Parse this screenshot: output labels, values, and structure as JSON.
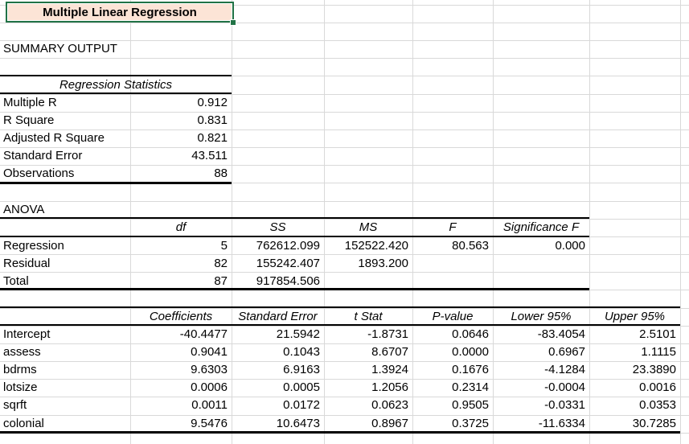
{
  "title_cell": {
    "text": "Multiple Linear Regression"
  },
  "summary_heading": "SUMMARY OUTPUT",
  "regression_statistics": {
    "header": "Regression Statistics",
    "rows": [
      {
        "label": "Multiple R",
        "value": "0.912"
      },
      {
        "label": "R Square",
        "value": "0.831"
      },
      {
        "label": "Adjusted R Square",
        "value": "0.821"
      },
      {
        "label": "Standard Error",
        "value": "43.511"
      },
      {
        "label": "Observations",
        "value": "88"
      }
    ]
  },
  "anova": {
    "heading": "ANOVA",
    "columns": [
      "df",
      "SS",
      "MS",
      "F",
      "Significance F"
    ],
    "rows": [
      {
        "label": "Regression",
        "df": "5",
        "ss": "762612.099",
        "ms": "152522.420",
        "f": "80.563",
        "sig_f": "0.000"
      },
      {
        "label": "Residual",
        "df": "82",
        "ss": "155242.407",
        "ms": "1893.200"
      },
      {
        "label": "Total",
        "df": "87",
        "ss": "917854.506"
      }
    ]
  },
  "coefficients": {
    "columns": [
      "Coefficients",
      "Standard Error",
      "t Stat",
      "P-value",
      "Lower 95%",
      "Upper 95%"
    ],
    "rows": [
      {
        "label": "Intercept",
        "coef": "-40.4477",
        "se": "21.5942",
        "t": "-1.8731",
        "p": "0.0646",
        "lo": "-83.4054",
        "hi": "2.5101"
      },
      {
        "label": "assess",
        "coef": "0.9041",
        "se": "0.1043",
        "t": "8.6707",
        "p": "0.0000",
        "lo": "0.6967",
        "hi": "1.1115"
      },
      {
        "label": "bdrms",
        "coef": "9.6303",
        "se": "6.9163",
        "t": "1.3924",
        "p": "0.1676",
        "lo": "-4.1284",
        "hi": "23.3890"
      },
      {
        "label": "lotsize",
        "coef": "0.0006",
        "se": "0.0005",
        "t": "1.2056",
        "p": "0.2314",
        "lo": "-0.0004",
        "hi": "0.0016"
      },
      {
        "label": "sqrft",
        "coef": "0.0011",
        "se": "0.0172",
        "t": "0.0623",
        "p": "0.9505",
        "lo": "-0.0331",
        "hi": "0.0353"
      },
      {
        "label": "colonial",
        "coef": "9.5476",
        "se": "10.6473",
        "t": "0.8967",
        "p": "0.3725",
        "lo": "-11.6334",
        "hi": "30.7285"
      }
    ]
  },
  "colors": {
    "selection_green": "#217346",
    "title_fill": "#FCE4D6",
    "gridline": "#D9D9D9"
  }
}
